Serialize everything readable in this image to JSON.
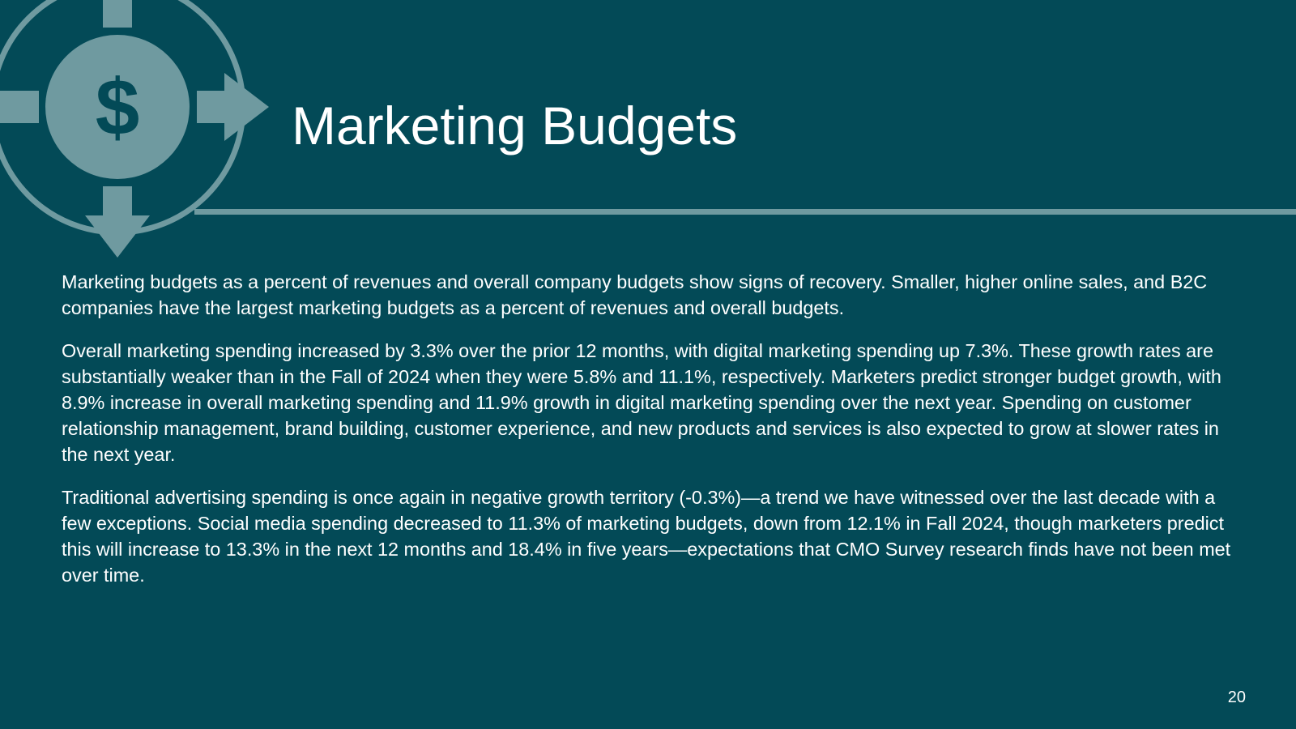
{
  "slide": {
    "background_color": "#034a57",
    "accent_color": "#6f9aa0",
    "icon": "dollar-circulation-icon",
    "title": "Marketing Budgets",
    "paragraphs": [
      "Marketing budgets as a percent of revenues and overall company budgets show signs of recovery. Smaller, higher online sales, and B2C companies have the largest marketing budgets as a percent of revenues and overall budgets.",
      "Overall marketing spending increased by 3.3% over the prior 12 months, with digital marketing spending up 7.3%. These growth rates are substantially weaker than in the Fall of 2024 when they were 5.8% and 11.1%, respectively. Marketers predict stronger budget growth, with 8.9% increase in overall marketing spending and 11.9% growth in digital marketing spending over the next year. Spending on customer relationship management, brand building, customer experience, and new products and services is also expected to grow at slower rates in the next year.",
      "Traditional advertising spending is once again in negative growth territory (-0.3%)—a trend we have witnessed over the last decade with a few exceptions. Social media spending decreased to 11.3% of marketing budgets, down from 12.1% in Fall 2024, though marketers predict this will increase to 13.3% in the next 12 months and 18.4% in five years—expectations that CMO Survey research finds have not been met over time."
    ],
    "page_number": "20"
  }
}
